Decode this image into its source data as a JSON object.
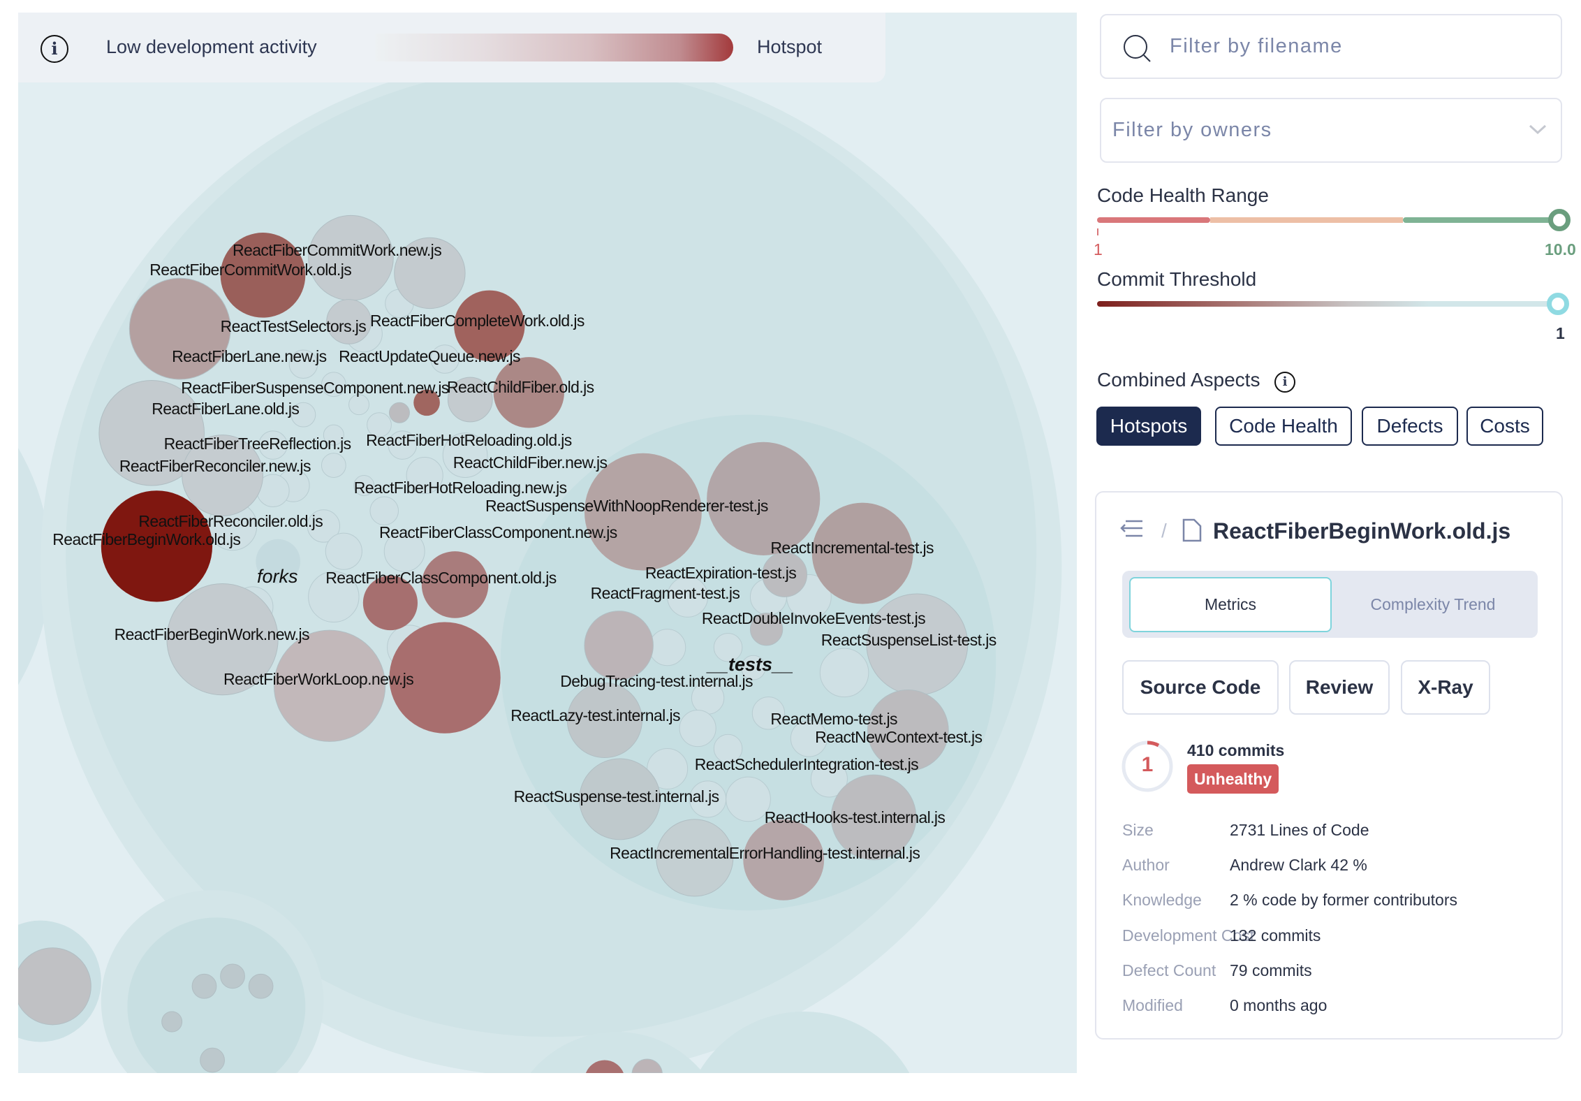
{
  "legend": {
    "low_label": "Low development activity",
    "high_label": "Hotspot",
    "gradient_colors": [
      "#edf1f3",
      "#a33a3c"
    ]
  },
  "map": {
    "folders": [
      "forks",
      "__tests__"
    ],
    "labels": [
      "ReactFiberCommitWork.new.js",
      "ReactFiberCommitWork.old.js",
      "ReactTestSelectors.js",
      "ReactFiberCompleteWork.old.js",
      "ReactFiberLane.new.js",
      "ReactUpdateQueue.new.js",
      "ReactFiberSuspenseComponent.new.js",
      "ReactChildFiber.old.js",
      "ReactFiberLane.old.js",
      "ReactFiberTreeReflection.js",
      "ReactFiberHotReloading.old.js",
      "ReactFiberReconciler.new.js",
      "ReactChildFiber.new.js",
      "ReactFiberHotReloading.new.js",
      "ReactSuspenseWithNoopRenderer-test.js",
      "ReactFiberReconciler.old.js",
      "ReactFiberBeginWork.old.js",
      "ReactFiberClassComponent.new.js",
      "ReactIncremental-test.js",
      "ReactExpiration-test.js",
      "ReactFiberClassComponent.old.js",
      "ReactFragment-test.js",
      "ReactDoubleInvokeEvents-test.js",
      "ReactFiberBeginWork.new.js",
      "ReactSuspenseList-test.js",
      "DebugTracing-test.internal.js",
      "ReactFiberWorkLoop.new.js",
      "ReactLazy-test.internal.js",
      "ReactMemo-test.js",
      "ReactNewContext-test.js",
      "ReactSchedulerIntegration-test.js",
      "ReactSuspense-test.internal.js",
      "ReactHooks-test.internal.js",
      "ReactIncrementalErrorHandling-test.internal.js"
    ]
  },
  "filters": {
    "filename_placeholder": "Filter by filename",
    "owners_placeholder": "Filter by owners"
  },
  "code_health": {
    "title": "Code Health Range",
    "min_label": "1",
    "max_label": "10.0",
    "value": 10.0,
    "colors": {
      "unhealthy": "#d9777a",
      "warning": "#edbfa6",
      "healthy": "#7fb394"
    }
  },
  "commit_threshold": {
    "title": "Commit Threshold",
    "value_label": "1",
    "value": 1
  },
  "aspects": {
    "title": "Combined Aspects",
    "buttons": [
      "Hotspots",
      "Code Health",
      "Defects",
      "Costs"
    ],
    "active": "Hotspots"
  },
  "detail": {
    "separator": "/",
    "filename": "ReactFiberBeginWork.old.js",
    "tabs": [
      "Metrics",
      "Complexity Trend"
    ],
    "active_tab": "Metrics",
    "actions": [
      "Source Code",
      "Review",
      "X-Ray"
    ],
    "score": "1",
    "commits": "410 commits",
    "status": "Unhealthy",
    "status_color": "#d45a5c",
    "rows": [
      {
        "key": "Size",
        "value": "2731 Lines of Code"
      },
      {
        "key": "Author",
        "value": "Andrew Clark 42 %"
      },
      {
        "key": "Knowledge",
        "value": "2 % code by former contributors"
      },
      {
        "key": "Development Cost",
        "value": "132 commits"
      },
      {
        "key": "Defect Count",
        "value": "79 commits"
      },
      {
        "key": "Modified",
        "value": "0 months ago"
      }
    ]
  }
}
